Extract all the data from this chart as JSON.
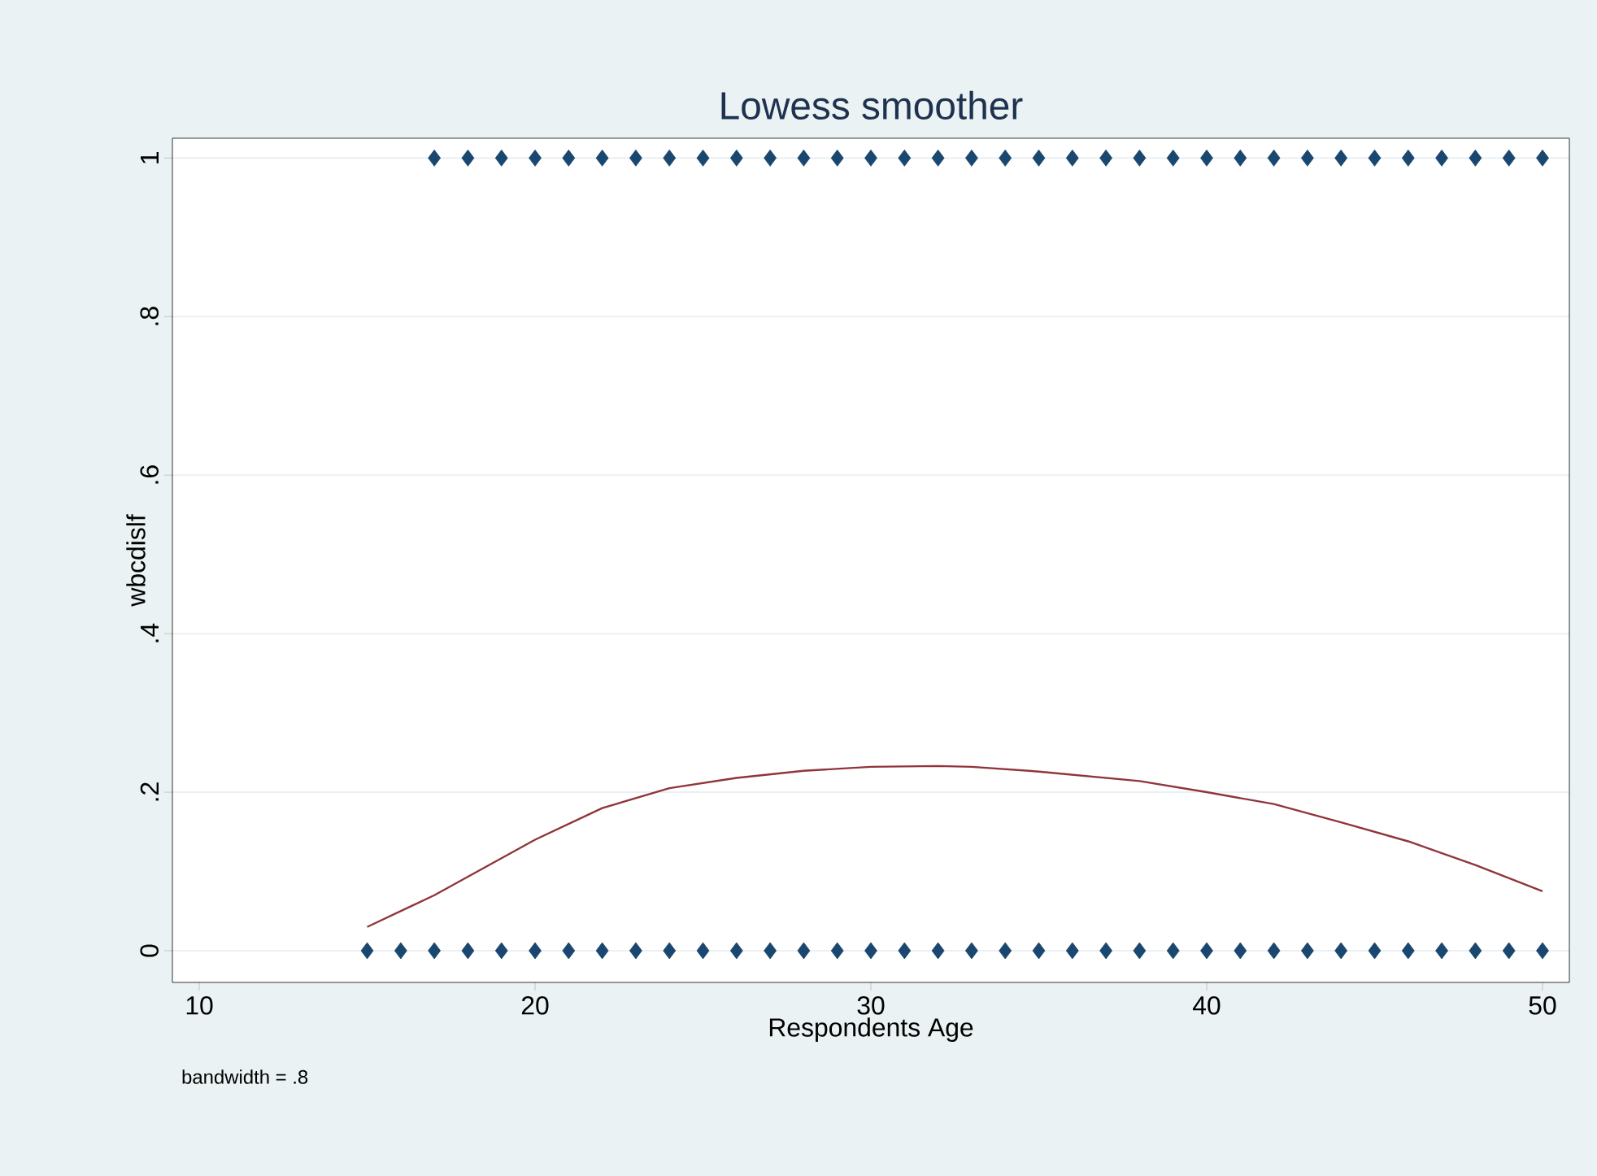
{
  "chart_data": {
    "type": "scatter",
    "title": "Lowess smoother",
    "xlabel": "Respondents Age",
    "ylabel": "wbcdislf",
    "annotations": [
      "bandwidth = .8"
    ],
    "xlim": [
      9.2,
      50.8
    ],
    "ylim": [
      -0.04,
      1.025
    ],
    "xticks": [
      10,
      20,
      30,
      40,
      50
    ],
    "yticks": [
      {
        "value": 0,
        "label": "0"
      },
      {
        "value": 0.2,
        "label": ".2"
      },
      {
        "value": 0.4,
        "label": ".4"
      },
      {
        "value": 0.6,
        "label": ".6"
      },
      {
        "value": 0.8,
        "label": ".8"
      },
      {
        "value": 1,
        "label": "1"
      }
    ],
    "grid": "y",
    "marker": "diamond",
    "series": [
      {
        "color": "#1a476f",
        "x": [
          17,
          18,
          19,
          20,
          21,
          22,
          23,
          24,
          25,
          26,
          27,
          28,
          29,
          30,
          31,
          32,
          33,
          34,
          35,
          36,
          37,
          38,
          39,
          40,
          41,
          42,
          43,
          44,
          45,
          46,
          47,
          48,
          49,
          50
        ],
        "values": [
          1,
          1,
          1,
          1,
          1,
          1,
          1,
          1,
          1,
          1,
          1,
          1,
          1,
          1,
          1,
          1,
          1,
          1,
          1,
          1,
          1,
          1,
          1,
          1,
          1,
          1,
          1,
          1,
          1,
          1,
          1,
          1,
          1,
          1
        ]
      },
      {
        "color": "#1a476f",
        "x": [
          15,
          16,
          17,
          18,
          19,
          20,
          21,
          22,
          23,
          24,
          25,
          26,
          27,
          28,
          29,
          30,
          31,
          32,
          33,
          34,
          35,
          36,
          37,
          38,
          39,
          40,
          41,
          42,
          43,
          44,
          45,
          46,
          47,
          48,
          49,
          50
        ],
        "values": [
          0,
          0,
          0,
          0,
          0,
          0,
          0,
          0,
          0,
          0,
          0,
          0,
          0,
          0,
          0,
          0,
          0,
          0,
          0,
          0,
          0,
          0,
          0,
          0,
          0,
          0,
          0,
          0,
          0,
          0,
          0,
          0,
          0,
          0,
          0,
          0
        ]
      },
      {
        "type": "line",
        "marker": "none",
        "color": "#90353b",
        "x": [
          15,
          17,
          20,
          22,
          24,
          26,
          28,
          30,
          32,
          33,
          35,
          38,
          40,
          42,
          44,
          46,
          48,
          50
        ],
        "values": [
          0.03,
          0.07,
          0.14,
          0.18,
          0.205,
          0.218,
          0.227,
          0.232,
          0.233,
          0.232,
          0.226,
          0.214,
          0.2,
          0.185,
          0.162,
          0.138,
          0.108,
          0.075
        ]
      }
    ]
  }
}
